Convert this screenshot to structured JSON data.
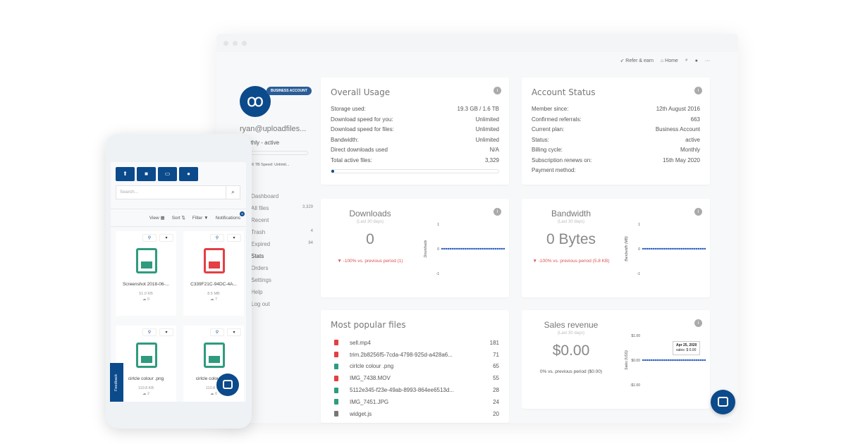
{
  "topnav": {
    "refer": "Refer & earn",
    "home": "Home"
  },
  "sidebar": {
    "badge": "BUSINESS ACCOUNT",
    "email": "ryan@uploadfiles...",
    "plan": "Monthly - active",
    "usage": "GB / 1.6 TB  Speed: Unlimit...",
    "items": [
      {
        "label": "Dashboard",
        "count": ""
      },
      {
        "label": "All files",
        "count": "3,329"
      },
      {
        "label": "Recent",
        "count": ""
      },
      {
        "label": "Trash",
        "count": "4"
      },
      {
        "label": "Expired",
        "count": "84"
      },
      {
        "label": "Stats",
        "count": ""
      },
      {
        "label": "Orders",
        "count": ""
      },
      {
        "label": "Settings",
        "count": ""
      },
      {
        "label": "Help",
        "count": ""
      },
      {
        "label": "Log out",
        "count": ""
      }
    ]
  },
  "usage": {
    "title": "Overall Usage",
    "rows": [
      [
        "Storage used:",
        "19.3 GB / 1.6 TB"
      ],
      [
        "Download speed for you:",
        "Unlimited"
      ],
      [
        "Download speed for files:",
        "Unlimited"
      ],
      [
        "Bandwidth:",
        "Unlimited"
      ],
      [
        "Direct downloads used",
        "N/A"
      ],
      [
        "Total active files:",
        "3,329"
      ]
    ],
    "progress": 0.012
  },
  "account": {
    "title": "Account Status",
    "rows": [
      [
        "Member since:",
        "12th August 2016"
      ],
      [
        "Confirmed referrals:",
        "663"
      ],
      [
        "Current plan:",
        "Business Account"
      ],
      [
        "Status:",
        "active"
      ],
      [
        "Billing cycle:",
        "Monthly"
      ],
      [
        "Subscription renews on:",
        "15th May 2020"
      ],
      [
        "Payment method:",
        ""
      ]
    ]
  },
  "downloads": {
    "title": "Downloads",
    "sub": "(Last 30 days)",
    "value": "0",
    "change": "▼ -100% vs. previous period (1)"
  },
  "bandwidth": {
    "title": "Bandwidth",
    "sub": "(Last 30 days)",
    "value": "0 Bytes",
    "change": "▼ -100% vs. previous period (5.8 KB)"
  },
  "sales": {
    "title": "Sales revenue",
    "sub": "(Last 30 days)",
    "value": "$0.00",
    "change": "0% vs. previous period ($0.00)",
    "tooltip_date": "Apr 25, 2020",
    "tooltip_val": "sales: $ 0.00"
  },
  "popular": {
    "title": "Most popular files",
    "files": [
      {
        "name": "sell.mp4",
        "count": "181",
        "type": "video"
      },
      {
        "name": "trim.2b8256f5-7cda-4798-925d-a428a6...",
        "count": "71",
        "type": "video"
      },
      {
        "name": "cirlcle colour .png",
        "count": "65",
        "type": "image"
      },
      {
        "name": "IMG_7438.MOV",
        "count": "55",
        "type": "video"
      },
      {
        "name": "5112e345-f23e-49ab-8993-864ee6513d...",
        "count": "28",
        "type": "image"
      },
      {
        "name": "IMG_7451.JPG",
        "count": "24",
        "type": "image"
      },
      {
        "name": "widget.js",
        "count": "20",
        "type": "other"
      }
    ]
  },
  "chart_data": [
    {
      "type": "line",
      "ylabel": "Downloads",
      "yticks": [
        "1",
        "0",
        "-1"
      ],
      "ylim": [
        -1,
        1
      ],
      "values": [
        0,
        0,
        0,
        0,
        0,
        0,
        0,
        0,
        0,
        0,
        0,
        0,
        0,
        0,
        0,
        0,
        0,
        0,
        0,
        0,
        0,
        0,
        0,
        0,
        0,
        0,
        0,
        0,
        0,
        0
      ]
    },
    {
      "type": "line",
      "ylabel": "Bandwidth (MB)",
      "yticks": [
        "1",
        "0",
        "-1"
      ],
      "ylim": [
        -1,
        1
      ],
      "values": [
        0,
        0,
        0,
        0,
        0,
        0,
        0,
        0,
        0,
        0,
        0,
        0,
        0,
        0,
        0,
        0,
        0,
        0,
        0,
        0,
        0,
        0,
        0,
        0,
        0,
        0,
        0,
        0,
        0,
        0
      ]
    },
    {
      "type": "line",
      "ylabel": "Sales (USD)",
      "yticks": [
        "$1.00",
        "$0.00",
        "-$1.00"
      ],
      "ylim": [
        -1,
        1
      ],
      "values": [
        0,
        0,
        0,
        0,
        0,
        0,
        0,
        0,
        0,
        0,
        0,
        0,
        0,
        0,
        0,
        0,
        0,
        0,
        0,
        0,
        0,
        0,
        0,
        0,
        0,
        0,
        0,
        0,
        0,
        0
      ]
    }
  ],
  "phone": {
    "search_placeholder": "Search...",
    "view": "View",
    "sort": "Sort",
    "filter": "Filter",
    "notifications": "Notifications",
    "notif_count": "9",
    "feedback": "Feedback",
    "tiles": [
      {
        "name": "Screenshot 2018-06-...",
        "size": "51.0 KB",
        "dl": "0",
        "type": "image"
      },
      {
        "name": "C339F21C-94DC-4A...",
        "size": "8.5 MB",
        "dl": "7",
        "type": "video"
      },
      {
        "name": "cirlcle colour .png",
        "size": "110.8 KB",
        "dl": "2",
        "type": "image"
      },
      {
        "name": "cirlcle colour .png",
        "size": "110.8 KB",
        "dl": "0",
        "type": "image"
      }
    ]
  },
  "colors": {
    "brand": "#0b4a8b",
    "image": "#2e9b7f",
    "video": "#e53e44",
    "negative": "#d9534f"
  }
}
